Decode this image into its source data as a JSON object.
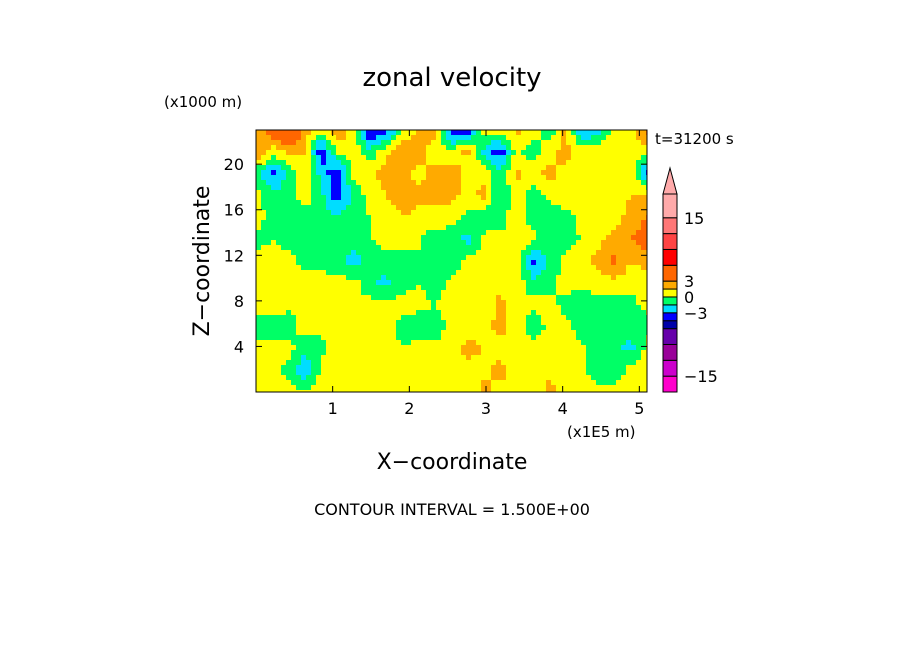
{
  "chart_data": {
    "type": "heatmap",
    "title": "zonal velocity",
    "xlabel": "X−coordinate",
    "ylabel": "Z−coordinate",
    "x_unit": "(x1E5 m)",
    "y_unit": "(x1000 m)",
    "time_label": "t=31200 s",
    "footer": "CONTOUR INTERVAL = 1.500E+00",
    "xlim": [
      0,
      5.1
    ],
    "ylim": [
      0,
      23
    ],
    "xticks": [
      1,
      2,
      3,
      4,
      5
    ],
    "xtick_labels": [
      "1",
      "2",
      "3",
      "4",
      "5"
    ],
    "yticks": [
      4,
      8,
      12,
      16,
      20
    ],
    "ytick_labels": [
      "4",
      "8",
      "12",
      "16",
      "20"
    ],
    "contour_interval": 1.5,
    "colorbar": {
      "levels_min": -18,
      "levels_max": 19.5,
      "tick_values": [
        15,
        3,
        0,
        -3,
        -15
      ],
      "tick_labels": [
        "15",
        "3",
        "0",
        "−3",
        "−15"
      ],
      "extend_top": true,
      "colors": [
        {
          "from": -18,
          "to": -15,
          "color": "#ff00cc"
        },
        {
          "from": -15,
          "to": -12,
          "color": "#cc00cc"
        },
        {
          "from": -12,
          "to": -9,
          "color": "#990099"
        },
        {
          "from": -9,
          "to": -6,
          "color": "#6600aa"
        },
        {
          "from": -6,
          "to": -4.5,
          "color": "#0000aa"
        },
        {
          "from": -4.5,
          "to": -3,
          "color": "#0000ff"
        },
        {
          "from": -3,
          "to": -1.5,
          "color": "#00ddff"
        },
        {
          "from": -1.5,
          "to": 0,
          "color": "#00ff66"
        },
        {
          "from": 0,
          "to": 1.5,
          "color": "#ffff00"
        },
        {
          "from": 1.5,
          "to": 3,
          "color": "#ffaa00"
        },
        {
          "from": 3,
          "to": 6,
          "color": "#ff6600"
        },
        {
          "from": 6,
          "to": 9,
          "color": "#ff0000"
        },
        {
          "from": 9,
          "to": 12,
          "color": "#ff4444"
        },
        {
          "from": 12,
          "to": 15,
          "color": "#ff7777"
        },
        {
          "from": 15,
          "to": 19.5,
          "color": "#ffaaaa"
        }
      ]
    },
    "field_rows_top_to_bottom": [
      [
        1.2,
        4.5,
        6.5,
        2.0,
        0.8,
        2.5,
        1.0,
        -5.0,
        -4.0,
        0.5,
        1.5,
        2.0,
        -4.5,
        -4.0,
        1.0,
        0.5,
        2.0,
        1.0,
        -1.0,
        2.0,
        -3.5,
        -2.5,
        1.0,
        0.5,
        3.5
      ],
      [
        3.5,
        0.5,
        2.0,
        1.5,
        -4.5,
        0.5,
        1.0,
        -1.0,
        1.0,
        2.5,
        2.0,
        1.0,
        0.5,
        2.0,
        -2.0,
        -4.0,
        0.5,
        -1.0,
        1.0,
        2.0,
        1.0,
        1.5,
        0.5,
        1.0,
        0.5
      ],
      [
        -1.0,
        -3.5,
        -1.0,
        1.5,
        -2.0,
        -4.5,
        0.5,
        1.0,
        2.5,
        2.0,
        1.0,
        2.0,
        2.5,
        0.5,
        1.0,
        -1.0,
        2.0,
        1.0,
        2.0,
        1.0,
        0.5,
        1.0,
        0.5,
        1.0,
        -3.5
      ],
      [
        0.5,
        -1.0,
        -1.0,
        1.0,
        -1.0,
        -4.0,
        -1.0,
        0.5,
        1.5,
        2.5,
        2.0,
        1.5,
        2.0,
        1.0,
        2.0,
        -2.0,
        1.0,
        -1.0,
        0.5,
        1.0,
        0.0,
        0.5,
        0.5,
        1.5,
        2.0
      ],
      [
        1.0,
        -1.0,
        -0.5,
        -1.0,
        -1.0,
        -1.0,
        -0.5,
        0.0,
        0.5,
        1.5,
        1.0,
        1.5,
        0.5,
        -0.5,
        -1.0,
        -1.0,
        1.5,
        -1.0,
        -1.0,
        -0.5,
        0.5,
        0.5,
        1.0,
        2.0,
        3.0
      ],
      [
        -0.5,
        0.0,
        -0.5,
        -1.0,
        -1.0,
        -1.0,
        -1.0,
        0.0,
        0.5,
        0.5,
        0.0,
        -1.0,
        -1.0,
        -2.0,
        0.5,
        0.5,
        1.0,
        0.5,
        -1.0,
        -0.5,
        0.0,
        1.0,
        2.0,
        3.0,
        4.0
      ],
      [
        0.5,
        0.5,
        0.5,
        -0.5,
        -1.0,
        -1.0,
        -2.0,
        -1.0,
        -0.5,
        -0.5,
        0.0,
        -1.0,
        -1.0,
        0.5,
        0.5,
        0.0,
        1.0,
        -3.5,
        -1.0,
        0.5,
        1.0,
        2.0,
        3.5,
        1.5,
        2.0
      ],
      [
        0.5,
        0.5,
        0.5,
        0.5,
        1.0,
        0.5,
        0.5,
        -1.0,
        -2.0,
        -0.5,
        0.0,
        -1.0,
        0.5,
        0.5,
        0.5,
        1.0,
        1.0,
        -1.0,
        -0.5,
        0.5,
        0.5,
        1.0,
        1.0,
        0.5,
        1.0
      ],
      [
        0.5,
        1.0,
        0.5,
        0.5,
        0.5,
        0.5,
        0.5,
        0.5,
        0.5,
        0.5,
        0.5,
        0.0,
        1.0,
        0.5,
        0.5,
        2.0,
        0.5,
        0.5,
        0.5,
        -0.5,
        -1.0,
        -1.0,
        -1.0,
        -0.5,
        0.5
      ],
      [
        -1.0,
        -1.0,
        -1.0,
        1.0,
        0.5,
        0.5,
        0.5,
        0.5,
        0.5,
        -0.5,
        -1.0,
        -1.0,
        0.5,
        0.5,
        1.0,
        2.0,
        1.0,
        -1.0,
        0.5,
        0.5,
        -1.0,
        -1.0,
        -1.0,
        -1.0,
        -0.5
      ],
      [
        0.5,
        0.5,
        0.5,
        -1.0,
        -0.5,
        1.0,
        1.5,
        0.5,
        0.5,
        0.0,
        0.5,
        0.5,
        1.0,
        2.0,
        1.5,
        1.0,
        0.5,
        0.5,
        0.5,
        1.0,
        0.5,
        -1.0,
        -1.0,
        -2.0,
        0.5
      ],
      [
        0.5,
        0.5,
        -0.5,
        -3.0,
        0.5,
        0.5,
        1.0,
        0.5,
        1.0,
        0.5,
        0.0,
        0.5,
        0.5,
        1.0,
        1.0,
        2.0,
        1.0,
        0.5,
        1.0,
        1.0,
        0.5,
        -1.0,
        -1.0,
        0.5,
        1.0
      ],
      [
        1.0,
        0.5,
        0.5,
        0.5,
        0.5,
        0.5,
        1.0,
        1.0,
        0.5,
        0.5,
        0.5,
        1.0,
        0.5,
        0.5,
        2.0,
        1.0,
        1.0,
        0.5,
        2.0,
        1.0,
        1.0,
        0.5,
        0.5,
        0.5,
        1.0
      ]
    ]
  }
}
